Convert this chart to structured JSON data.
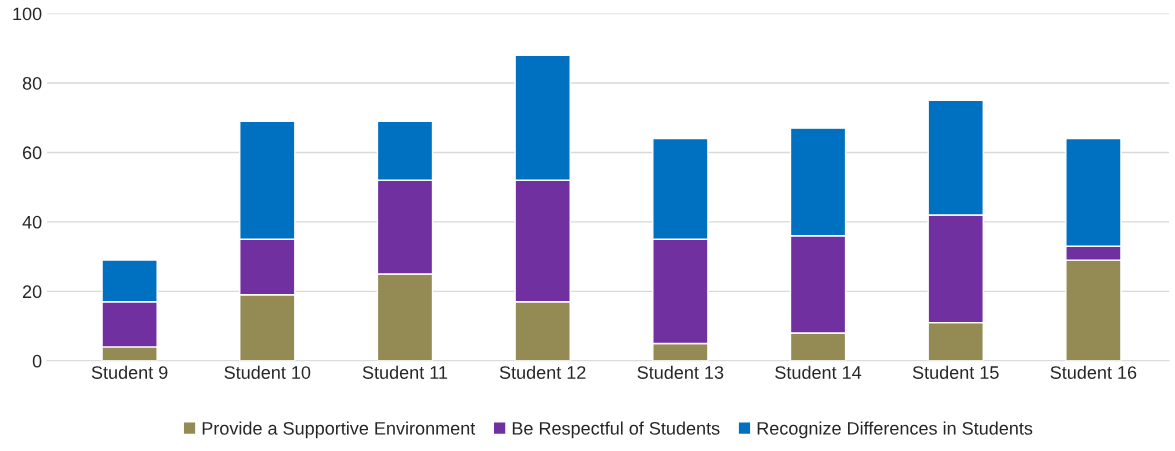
{
  "chart_data": {
    "type": "bar",
    "stacked": true,
    "categories": [
      "Student 9",
      "Student 10",
      "Student 11",
      "Student 12",
      "Student 13",
      "Student 14",
      "Student 15",
      "Student 16"
    ],
    "series": [
      {
        "name": "Provide a Supportive Environment",
        "color": "#948a54",
        "values": [
          4,
          19,
          25,
          17,
          5,
          8,
          11,
          29
        ]
      },
      {
        "name": "Be Respectful of Students",
        "color": "#7030a0",
        "values": [
          13,
          16,
          27,
          35,
          30,
          28,
          31,
          4
        ]
      },
      {
        "name": "Recognize Differences in Students",
        "color": "#0070c0",
        "values": [
          12,
          34,
          17,
          36,
          29,
          31,
          33,
          31
        ]
      }
    ],
    "ylim": [
      0,
      100
    ],
    "yticks": [
      0,
      20,
      40,
      60,
      80,
      100
    ],
    "grid": "y",
    "legend": "bottom"
  }
}
